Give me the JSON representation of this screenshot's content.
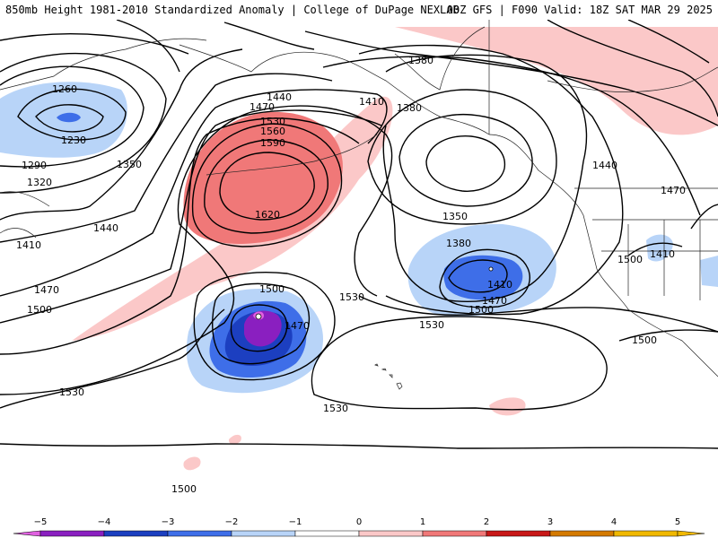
{
  "header": {
    "title": "850mb Height 1981-2010 Standardized Anomaly | College of DuPage NEXLAB",
    "run_info": "00Z GFS | F090 Valid: 18Z SAT MAR 29 2025"
  },
  "contour_labels": [
    "1260",
    "1230",
    "1290",
    "1320",
    "1350",
    "1410",
    "1440",
    "1470",
    "1500",
    "1530",
    "1560",
    "1590",
    "1620",
    "1440",
    "1470",
    "1410",
    "1380",
    "1380",
    "1350",
    "1380",
    "1410",
    "1470",
    "1500",
    "1530",
    "1500",
    "1470",
    "1530",
    "1530",
    "1500",
    "1440",
    "1410",
    "1470",
    "1500",
    "1530",
    "1500"
  ],
  "colorbar": {
    "ticks": [
      "−5",
      "−4",
      "−3",
      "−2",
      "−1",
      "0",
      "1",
      "2",
      "3",
      "4",
      "5"
    ],
    "colors": [
      "#e060e0",
      "#8a1fc0",
      "#1c3fc0",
      "#3e6ee8",
      "#b8d4f8",
      "#ffffff",
      "#fbc8c8",
      "#f07878",
      "#c81818",
      "#d47a00",
      "#f0b800"
    ]
  }
}
